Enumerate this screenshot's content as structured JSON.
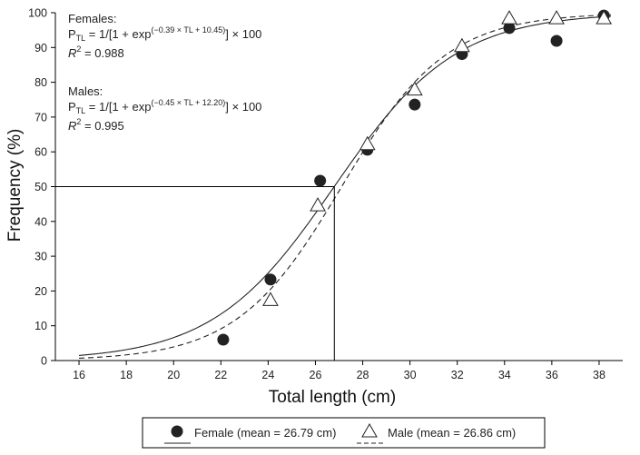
{
  "chart_data": {
    "type": "scatter",
    "xlabel": "Total length (cm)",
    "ylabel": "Frequency (%)",
    "xlim": [
      15,
      39
    ],
    "ylim": [
      0,
      100
    ],
    "xticks": [
      16,
      18,
      20,
      22,
      24,
      26,
      28,
      30,
      32,
      34,
      36,
      38
    ],
    "yticks": [
      0,
      10,
      20,
      30,
      40,
      50,
      60,
      70,
      80,
      90,
      100
    ],
    "grid": false,
    "series": [
      {
        "name": "Female (mean = 26.79 cm)",
        "marker": "filled-circle",
        "line_style": "solid",
        "fit": {
          "a": 0.39,
          "b": 10.45
        },
        "x": [
          22.1,
          24.1,
          26.2,
          28.2,
          30.2,
          32.2,
          34.2,
          36.2,
          38.2
        ],
        "y": [
          6,
          23.3,
          51.7,
          60.6,
          73.6,
          88.1,
          95.6,
          91.9,
          99.2
        ]
      },
      {
        "name": "Male (mean = 26.86 cm)",
        "marker": "open-triangle",
        "line_style": "dashed",
        "fit": {
          "a": 0.45,
          "b": 12.2
        },
        "x": [
          24.1,
          26.1,
          28.2,
          30.2,
          32.2,
          34.2,
          36.2,
          38.2
        ],
        "y": [
          17.4,
          44.6,
          62.2,
          77.9,
          90.4,
          98.4,
          98.4,
          98.4
        ]
      }
    ],
    "reference": {
      "x": 26.8,
      "y": 50
    },
    "annotations": {
      "females": {
        "heading": "Females:",
        "p": "P",
        "sub": "TL",
        "eq_pre": " = 1/[1 + exp",
        "exponent": "(−0.39 × TL + 10.45)",
        "eq_post": "] × 100",
        "r2_sym": "R",
        "r2_pow": "2",
        "r2_val": " = 0.988"
      },
      "males": {
        "heading": "Males:",
        "p": "P",
        "sub": "TL",
        "eq_pre": " = 1/[1 + exp",
        "exponent": "(−0.45 × TL + 12.20)",
        "eq_post": "] × 100",
        "r2_sym": "R",
        "r2_pow": "2",
        "r2_val": " = 0.995"
      }
    },
    "legend": {
      "position": "bottom"
    }
  }
}
